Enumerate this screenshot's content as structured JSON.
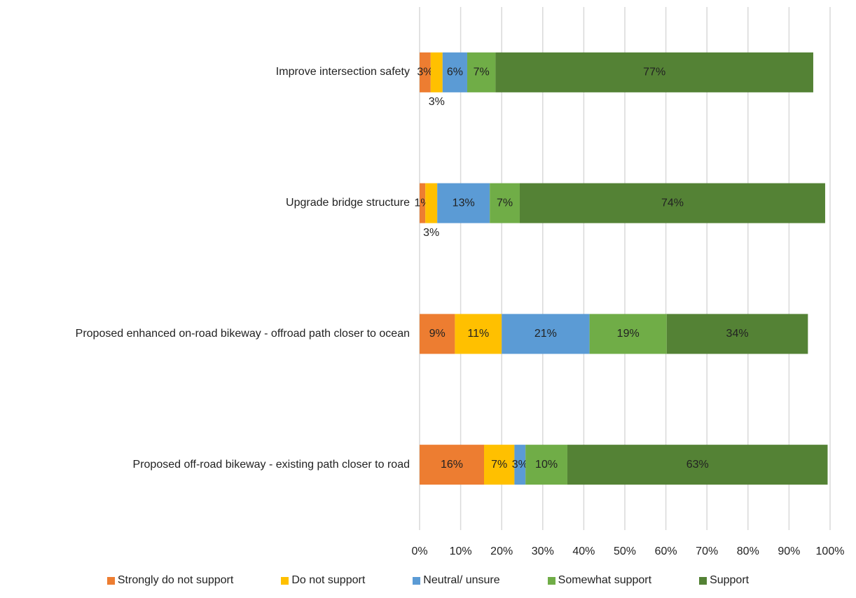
{
  "chart_data": {
    "type": "stacked-barh",
    "categories": [
      "Improve intersection safety",
      "Upgrade bridge structure",
      "Proposed enhanced on-road bikeway - offroad path closer to ocean",
      "Proposed off-road bikeway - existing path closer to road"
    ],
    "series": [
      {
        "name": "Strongly do not support",
        "color": "#ED7D31",
        "values": [
          2.7,
          1.4,
          8.6,
          15.7
        ],
        "value_labels": [
          "3%",
          "1%",
          "9%",
          "16%"
        ]
      },
      {
        "name": "Do not support",
        "color": "#FFC000",
        "values": [
          2.9,
          2.9,
          11.4,
          7.4
        ],
        "value_labels": [
          "3%",
          "3%",
          "11%",
          "7%"
        ]
      },
      {
        "name": "Neutral/ unsure",
        "color": "#5B9BD5",
        "values": [
          6.0,
          12.8,
          21.4,
          2.7
        ],
        "value_labels": [
          "6%",
          "13%",
          "21%",
          "3%"
        ]
      },
      {
        "name": "Somewhat support",
        "color": "#70AD47",
        "values": [
          6.9,
          7.3,
          18.8,
          10.2
        ],
        "value_labels": [
          "7%",
          "7%",
          "19%",
          "10%"
        ]
      },
      {
        "name": "Support",
        "color": "#548235",
        "values": [
          77.4,
          74.4,
          34.4,
          63.4
        ],
        "value_labels": [
          "77%",
          "74%",
          "34%",
          "63%"
        ]
      }
    ],
    "xlim": [
      0,
      100
    ],
    "xticks": [
      {
        "value": 0,
        "label": "0%"
      },
      {
        "value": 10,
        "label": "10%"
      },
      {
        "value": 20,
        "label": "20%"
      },
      {
        "value": 30,
        "label": "30%"
      },
      {
        "value": 40,
        "label": "40%"
      },
      {
        "value": 50,
        "label": "50%"
      },
      {
        "value": 60,
        "label": "60%"
      },
      {
        "value": 70,
        "label": "70%"
      },
      {
        "value": 80,
        "label": "80%"
      },
      {
        "value": 90,
        "label": "90%"
      },
      {
        "value": 100,
        "label": "100%"
      }
    ],
    "grid": true,
    "legend": "bottom"
  }
}
